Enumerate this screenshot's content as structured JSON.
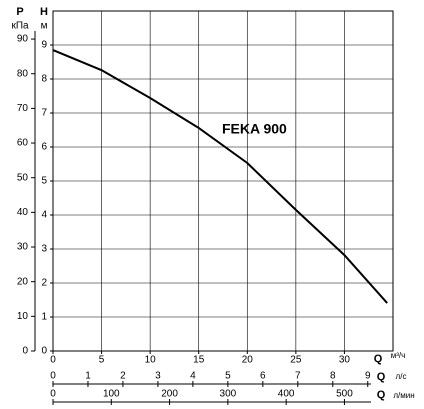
{
  "chart_data": {
    "type": "line",
    "annotation": "FEKA 900",
    "xlabel": "Q",
    "xunit": "м³/ч",
    "ylabel": "H",
    "yunit": "м",
    "y2label": "P",
    "y2unit": "кПа",
    "x2label": "Q",
    "x2unit": "л/с",
    "x3label": "Q",
    "x3unit": "л/мин",
    "x": [
      0,
      5,
      10,
      15,
      20,
      25,
      30,
      34.4
    ],
    "series": [
      {
        "color": "#000000",
        "values": [
          8.85,
          8.26,
          7.44,
          6.56,
          5.53,
          4.15,
          2.82,
          1.41
        ]
      }
    ],
    "xlim": [
      0,
      35
    ],
    "xticks": [
      0,
      5,
      10,
      15,
      20,
      25,
      30
    ],
    "ylim": [
      0,
      10
    ],
    "yticks": [
      0,
      1,
      2,
      3,
      4,
      5,
      6,
      7,
      8,
      9
    ],
    "y2lim": [
      0,
      98.1
    ],
    "y2ticks": [
      0,
      10,
      20,
      30,
      40,
      50,
      60,
      70,
      80,
      90
    ],
    "x2lim": [
      0,
      9.722
    ],
    "x2ticks": [
      0,
      1,
      2,
      3,
      4,
      5,
      6,
      7,
      8,
      9
    ],
    "x3lim": [
      0,
      583.3
    ],
    "x3ticks": [
      0,
      100,
      200,
      300,
      400,
      500
    ],
    "grid": true
  }
}
